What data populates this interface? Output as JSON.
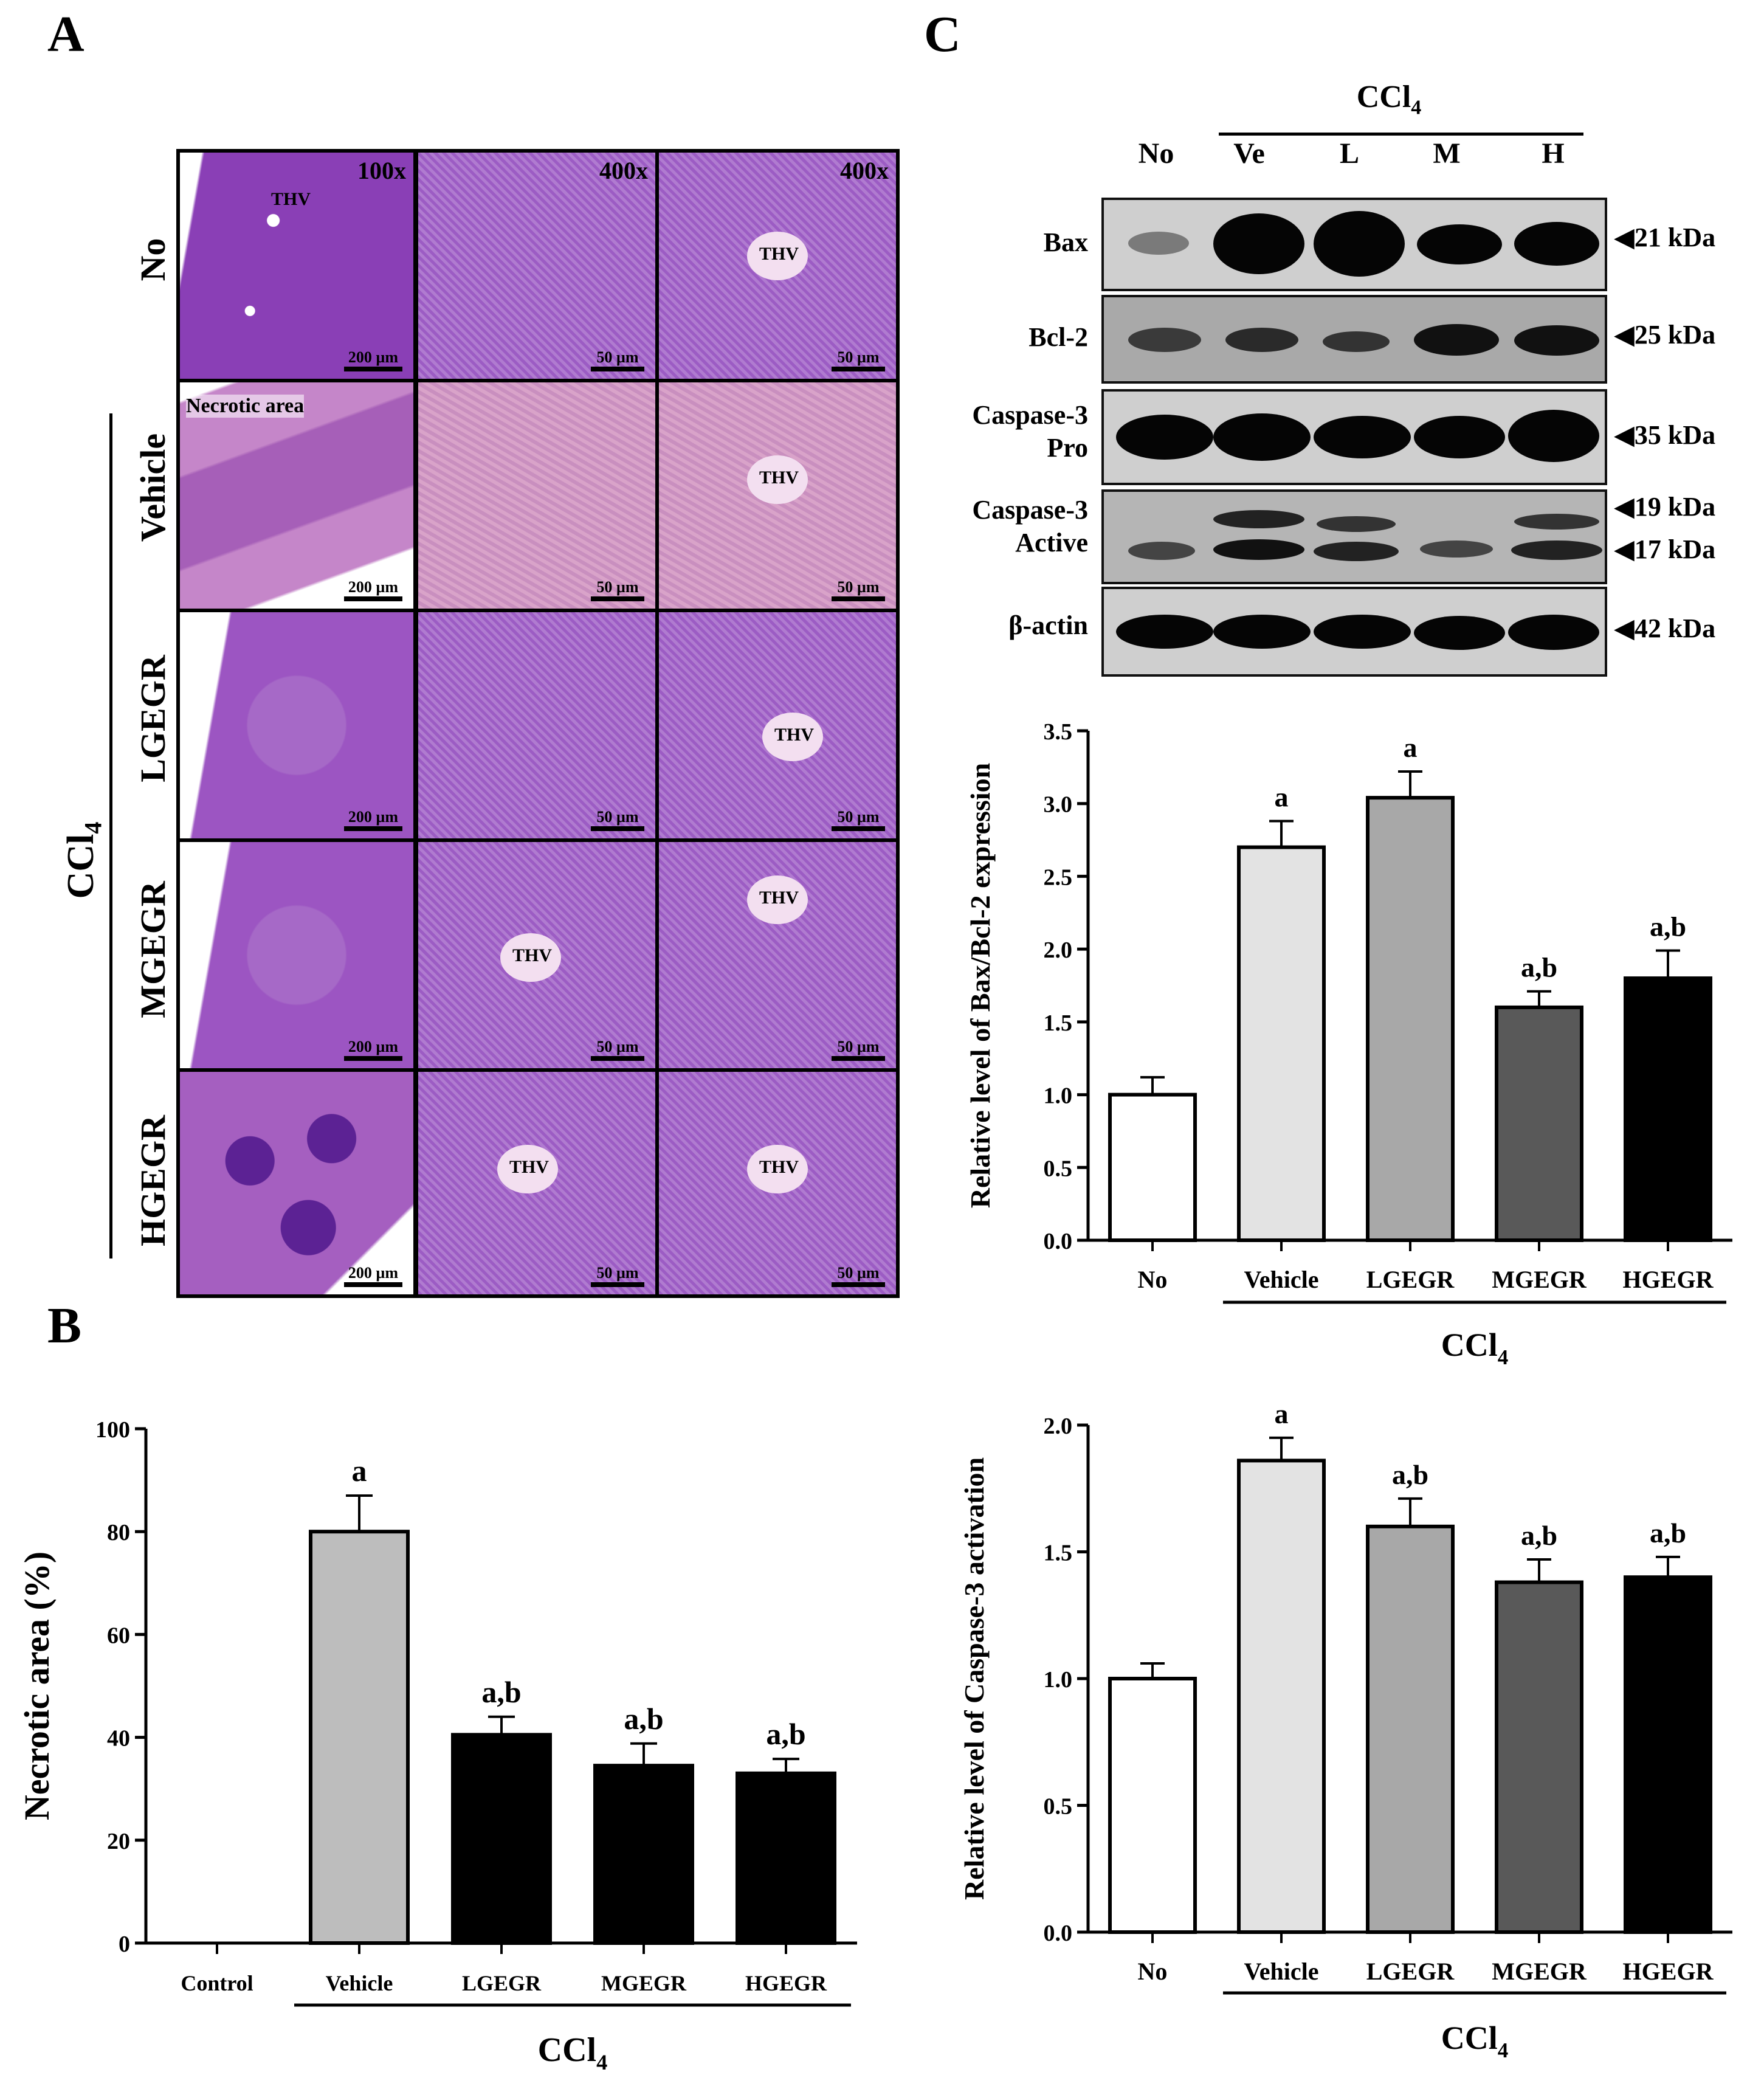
{
  "panels": {
    "A": "A",
    "B": "B",
    "C": "C"
  },
  "histology": {
    "group_label": "CCl",
    "group_sub": "4",
    "rows": [
      "No",
      "Vehicle",
      "LGEGR",
      "MGEGR",
      "HGEGR"
    ],
    "magnifications": [
      "100x",
      "400x",
      "400x"
    ],
    "scale_labels": [
      "200 µm",
      "50 µm",
      "50 µm"
    ],
    "thv_label": "THV",
    "necrotic_label": "Necrotic area",
    "colors": {
      "purple": "#8a3fb6",
      "pink": "#c586c9",
      "dark": "#5c2294",
      "vehicle_pale": "#d9a3c9"
    }
  },
  "blot": {
    "group_label": "CCl",
    "group_sub": "4",
    "lanes": [
      "No",
      "Ve",
      "L",
      "M",
      "H"
    ],
    "rows": [
      {
        "label": "Bax",
        "kda": [
          "21 kDa"
        ]
      },
      {
        "label": "Bcl-2",
        "kda": [
          "25 kDa"
        ]
      },
      {
        "label": "Caspase-3 Pro",
        "label_lines": [
          "Caspase-3",
          "Pro"
        ],
        "kda": [
          "35 kDa"
        ]
      },
      {
        "label": "Caspase-3 Active",
        "label_lines": [
          "Caspase-3",
          "Active"
        ],
        "kda": [
          "19 kDa",
          "17 kDa"
        ]
      },
      {
        "label": "β-actin",
        "kda": [
          "42 kDa"
        ]
      }
    ]
  },
  "chart_data": [
    {
      "id": "necrotic",
      "type": "bar",
      "categories": [
        "Control",
        "Vehicle",
        "LGEGR",
        "MGEGR",
        "HGEGR"
      ],
      "values": [
        0,
        80,
        40.5,
        34.5,
        33
      ],
      "errors": [
        0,
        7,
        3.5,
        4.3,
        2.8
      ],
      "annotations": [
        "",
        "a",
        "a,b",
        "a,b",
        "a,b"
      ],
      "colors": [
        "#ffffff",
        "#bdbdbd",
        "#000000",
        "#000000",
        "#000000"
      ],
      "ylabel": "Necrotic area (%)",
      "ylim": [
        0,
        100
      ],
      "yticks": [
        0,
        20,
        40,
        60,
        80,
        100
      ],
      "group_label": "CCl",
      "group_sub": "4"
    },
    {
      "id": "baxbcl2",
      "type": "bar",
      "categories": [
        "No",
        "Vehicle",
        "LGEGR",
        "MGEGR",
        "HGEGR"
      ],
      "values": [
        1.0,
        2.7,
        3.04,
        1.6,
        1.8
      ],
      "errors": [
        0.12,
        0.18,
        0.18,
        0.11,
        0.19
      ],
      "annotations": [
        "",
        "a",
        "a",
        "a,b",
        "a,b"
      ],
      "colors": [
        "#ffffff",
        "#e3e3e3",
        "#a8a8a8",
        "#595959",
        "#000000"
      ],
      "ylabel": "Relative level of Bax/Bcl-2 expression",
      "ylim": [
        0,
        3.5
      ],
      "yticks": [
        0.0,
        0.5,
        1.0,
        1.5,
        2.0,
        2.5,
        3.0,
        3.5
      ],
      "group_label": "CCl",
      "group_sub": "4"
    },
    {
      "id": "casp3",
      "type": "bar",
      "categories": [
        "No",
        "Vehicle",
        "LGEGR",
        "MGEGR",
        "HGEGR"
      ],
      "values": [
        1.0,
        1.86,
        1.6,
        1.38,
        1.4
      ],
      "errors": [
        0.06,
        0.09,
        0.11,
        0.09,
        0.08
      ],
      "annotations": [
        "",
        "a",
        "a,b",
        "a,b",
        "a,b"
      ],
      "colors": [
        "#ffffff",
        "#e3e3e3",
        "#a8a8a8",
        "#595959",
        "#000000"
      ],
      "ylabel": "Relative level of Caspase-3 activation",
      "ylim": [
        0,
        2.0
      ],
      "yticks": [
        0.0,
        0.5,
        1.0,
        1.5,
        2.0
      ],
      "group_label": "CCl",
      "group_sub": "4"
    }
  ]
}
